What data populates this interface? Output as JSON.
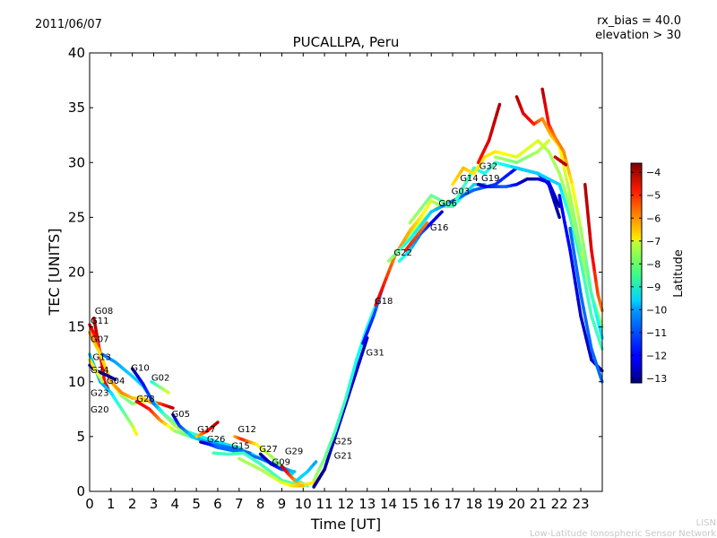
{
  "header": {
    "date": "2011/06/07",
    "rx_bias": "rx_bias = 40.0",
    "elevation": "elevation > 30"
  },
  "watermark": {
    "line1": "LISN",
    "line2": "Low-Latitude Ionospheric Sensor Network"
  },
  "chart_data": {
    "type": "scatter",
    "title": "PUCALLPA, Peru",
    "xlabel": "Time [UT]",
    "ylabel": "TEC [UNITS]",
    "xlim": [
      0,
      24
    ],
    "ylim": [
      0,
      40
    ],
    "xticks": [
      0,
      1,
      2,
      3,
      4,
      5,
      6,
      7,
      8,
      9,
      10,
      11,
      12,
      13,
      14,
      15,
      16,
      17,
      18,
      19,
      20,
      21,
      22,
      23
    ],
    "yticks": [
      0,
      5,
      10,
      15,
      20,
      25,
      30,
      35,
      40
    ],
    "grid": false,
    "colorbar": {
      "label": "Latitude",
      "range": [
        -13.2,
        -3.6
      ],
      "ticks": [
        -4,
        -5,
        -6,
        -7,
        -8,
        -9,
        -10,
        -11,
        -12,
        -13
      ],
      "colormap": "jet"
    },
    "satellite_labels": [
      {
        "name": "G08",
        "t": 0.2,
        "tec": 16.2
      },
      {
        "name": "G11",
        "t": 0.0,
        "tec": 15.3
      },
      {
        "name": "G07",
        "t": 0.0,
        "tec": 14.5
      },
      {
        "name": "G13",
        "t": 0.1,
        "tec": 13.8
      },
      {
        "name": "G24",
        "t": 0.0,
        "tec": 12.6
      },
      {
        "name": "G04",
        "t": 0.75,
        "tec": 12.5
      },
      {
        "name": "G23",
        "t": 0.0,
        "tec": 11.4
      },
      {
        "name": "G20",
        "t": 0.0,
        "tec": 10.8
      },
      {
        "name": "G10",
        "t": 1.9,
        "tec": 11.0
      },
      {
        "name": "G02",
        "t": 2.85,
        "tec": 10.1
      },
      {
        "name": "G28",
        "t": 2.15,
        "tec": 8.2
      },
      {
        "name": "G05",
        "t": 3.8,
        "tec": 6.8
      },
      {
        "name": "G17",
        "t": 5.0,
        "tec": 5.4
      },
      {
        "name": "G26",
        "t": 5.45,
        "tec": 4.5
      },
      {
        "name": "G12",
        "t": 6.9,
        "tec": 5.4
      },
      {
        "name": "G15",
        "t": 6.6,
        "tec": 3.9
      },
      {
        "name": "G27",
        "t": 7.9,
        "tec": 3.6
      },
      {
        "name": "G09",
        "t": 8.5,
        "tec": 2.4
      },
      {
        "name": "G29",
        "t": 9.1,
        "tec": 2.5
      },
      {
        "name": "G25",
        "t": 11.4,
        "tec": 4.3
      },
      {
        "name": "G21",
        "t": 11.4,
        "tec": 3.9
      },
      {
        "name": "G31",
        "t": 12.9,
        "tec": 12.4
      },
      {
        "name": "G18",
        "t": 13.3,
        "tec": 17.1
      },
      {
        "name": "G22",
        "t": 14.2,
        "tec": 21.5
      },
      {
        "name": "G16",
        "t": 15.9,
        "tec": 23.8
      },
      {
        "name": "G06",
        "t": 16.3,
        "tec": 26.0
      },
      {
        "name": "G03",
        "t": 16.9,
        "tec": 26.2
      },
      {
        "name": "G14",
        "t": 17.3,
        "tec": 28.3
      },
      {
        "name": "G19",
        "t": 18.3,
        "tec": 28.3
      },
      {
        "name": "G32",
        "t": 18.2,
        "tec": 29.4
      }
    ],
    "tracks": [
      [
        [
          0.2,
          15.8,
          -4
        ],
        [
          0.5,
          12.5,
          -4.5
        ],
        [
          0.7,
          10,
          -5
        ],
        [
          0.9,
          9.2,
          -4
        ]
      ],
      [
        [
          0,
          15.2,
          -4.5
        ],
        [
          0.3,
          14,
          -5
        ],
        [
          0.6,
          12,
          -6
        ],
        [
          1,
          10,
          -7
        ],
        [
          1.5,
          8.7,
          -8
        ],
        [
          2,
          8,
          -8.5
        ],
        [
          2.7,
          8.3,
          -7
        ],
        [
          3.3,
          8,
          -5.5
        ],
        [
          3.9,
          7.6,
          -4
        ]
      ],
      [
        [
          0,
          14.5,
          -6
        ],
        [
          0.5,
          12.5,
          -7
        ],
        [
          1,
          10,
          -6.5
        ],
        [
          1.5,
          9,
          -6
        ],
        [
          2,
          8.5,
          -6.5
        ],
        [
          2.5,
          8.5,
          -7
        ],
        [
          3,
          8,
          -6
        ],
        [
          3.5,
          7,
          -5.5
        ],
        [
          4,
          6,
          -6
        ],
        [
          5,
          5,
          -7
        ],
        [
          6,
          4.5,
          -8
        ],
        [
          7,
          4,
          -9
        ]
      ],
      [
        [
          0,
          12.5,
          -10
        ],
        [
          0.5,
          10,
          -10.5
        ],
        [
          1,
          9,
          -10
        ],
        [
          1.5,
          7.5,
          -9
        ],
        [
          2,
          6,
          -8
        ],
        [
          2.2,
          5.2,
          -7
        ]
      ],
      [
        [
          0,
          11.5,
          -12
        ],
        [
          0.3,
          11,
          -12.5
        ],
        [
          0.8,
          10.6,
          -13
        ],
        [
          1.2,
          10.2,
          -12.8
        ]
      ],
      [
        [
          0,
          12,
          -7
        ],
        [
          0.3,
          11,
          -7
        ],
        [
          0.6,
          10,
          -8
        ]
      ],
      [
        [
          0.6,
          12.5,
          -11
        ],
        [
          1.2,
          11.8,
          -10.5
        ],
        [
          2,
          10.5,
          -10
        ],
        [
          2.5,
          9.6,
          -10
        ],
        [
          3,
          8.2,
          -9
        ],
        [
          3.5,
          7,
          -9
        ],
        [
          4.5,
          5.5,
          -9
        ],
        [
          5.5,
          4.8,
          -9.5
        ],
        [
          6.5,
          4.2,
          -10
        ],
        [
          7.5,
          3.5,
          -10
        ],
        [
          8.5,
          2.5,
          -9
        ],
        [
          9.5,
          1.6,
          -10
        ]
      ],
      [
        [
          2,
          11.2,
          -13
        ],
        [
          2.5,
          9.8,
          -12
        ],
        [
          3,
          8,
          -11
        ],
        [
          3.5,
          7,
          -9
        ],
        [
          4,
          6,
          -8
        ],
        [
          4.5,
          5.3,
          -8
        ]
      ],
      [
        [
          2.9,
          10,
          -9.5
        ],
        [
          3.3,
          9.5,
          -8.5
        ],
        [
          3.7,
          9,
          -7.5
        ]
      ],
      [
        [
          2.2,
          8.2,
          -4.5
        ],
        [
          2.8,
          7.5,
          -5
        ],
        [
          3.3,
          6.5,
          -6
        ],
        [
          4,
          5.5,
          -8
        ],
        [
          5,
          4.8,
          -9
        ],
        [
          6,
          4.3,
          -10
        ]
      ],
      [
        [
          3.9,
          7,
          -12.5
        ],
        [
          4.2,
          6,
          -11.5
        ],
        [
          4.8,
          5,
          -10
        ],
        [
          5.5,
          4.5,
          -10.5
        ],
        [
          6.5,
          4,
          -11
        ],
        [
          7.5,
          3.5,
          -11
        ]
      ],
      [
        [
          5,
          5,
          -7
        ],
        [
          5.5,
          5.5,
          -5
        ],
        [
          6,
          6.3,
          -4
        ]
      ],
      [
        [
          5.2,
          4.5,
          -13
        ],
        [
          5.6,
          4.3,
          -12
        ],
        [
          6,
          4,
          -11
        ],
        [
          7,
          3.6,
          -11
        ],
        [
          8,
          3,
          -11
        ],
        [
          9,
          2.2,
          -11
        ],
        [
          9.5,
          1.8,
          -10
        ]
      ],
      [
        [
          6.8,
          5,
          -6.5
        ],
        [
          7.2,
          4.7,
          -5
        ],
        [
          7.8,
          4.3,
          -7
        ],
        [
          8.5,
          3.2,
          -8
        ],
        [
          9.5,
          1.2,
          -9
        ],
        [
          10.2,
          0.5,
          -9
        ]
      ],
      [
        [
          5.8,
          3.5,
          -9
        ],
        [
          6.5,
          3.4,
          -9
        ],
        [
          7.2,
          3.5,
          -9
        ],
        [
          8,
          2.5,
          -9
        ],
        [
          9,
          1,
          -9
        ],
        [
          10,
          0.5,
          -8.5
        ]
      ],
      [
        [
          8,
          3.4,
          -13
        ],
        [
          8.5,
          2.5,
          -12.5
        ],
        [
          9,
          2,
          -11.5
        ],
        [
          9.6,
          1.8,
          -10
        ]
      ],
      [
        [
          9,
          2.3,
          -4
        ],
        [
          9.3,
          1.6,
          -5
        ],
        [
          9.6,
          1,
          -6
        ],
        [
          10,
          0.6,
          -7
        ],
        [
          10.5,
          0.8,
          -7
        ]
      ],
      [
        [
          7,
          3,
          -8
        ],
        [
          8,
          2,
          -8
        ],
        [
          9,
          0.8,
          -7.5
        ],
        [
          9.5,
          0.5,
          -7
        ],
        [
          10,
          0.5,
          -6.5
        ]
      ],
      [
        [
          9.7,
          1,
          -10
        ],
        [
          10.2,
          1.8,
          -10
        ],
        [
          10.6,
          2.7,
          -10.5
        ]
      ],
      [
        [
          10.5,
          0.5,
          -6
        ],
        [
          11,
          2,
          -6
        ],
        [
          11.5,
          5,
          -6
        ],
        [
          12,
          8,
          -5.5
        ],
        [
          12.3,
          10,
          -5
        ],
        [
          12.5,
          12,
          -4.5
        ]
      ],
      [
        [
          10.5,
          0.4,
          -13
        ],
        [
          11,
          2,
          -13
        ],
        [
          11.5,
          5,
          -12.5
        ],
        [
          12,
          8,
          -12.5
        ],
        [
          12.5,
          11,
          -12.5
        ],
        [
          13,
          14,
          -12.8
        ]
      ],
      [
        [
          10.5,
          1,
          -8
        ],
        [
          11,
          3,
          -8.5
        ],
        [
          11.5,
          5.5,
          -9
        ],
        [
          12,
          8.5,
          -9
        ],
        [
          12.5,
          12,
          -9.5
        ],
        [
          13,
          15,
          -9.5
        ],
        [
          13.6,
          18,
          -9
        ]
      ],
      [
        [
          12.8,
          13.5,
          -12
        ],
        [
          13.3,
          16,
          -11.5
        ],
        [
          13.8,
          19,
          -10
        ],
        [
          14.3,
          21.5,
          -9
        ],
        [
          15,
          23.5,
          -8
        ],
        [
          16,
          25.5,
          -7
        ],
        [
          16.8,
          26.5,
          -8
        ]
      ],
      [
        [
          13.4,
          17,
          -4.5
        ],
        [
          13.8,
          19,
          -5
        ],
        [
          14.3,
          21.5,
          -6
        ],
        [
          15,
          23.8,
          -6.5
        ],
        [
          15.5,
          25,
          -7
        ],
        [
          16,
          26.5,
          -7.5
        ],
        [
          16.5,
          26,
          -8.5
        ],
        [
          17,
          26,
          -9
        ],
        [
          17.5,
          27,
          -9.5
        ],
        [
          18,
          28,
          -10
        ],
        [
          18.5,
          28,
          -10
        ]
      ],
      [
        [
          14.5,
          21,
          -9
        ],
        [
          15,
          22,
          -10
        ],
        [
          15.5,
          23.5,
          -11
        ],
        [
          16,
          24.5,
          -12
        ],
        [
          16.5,
          25.5,
          -12.5
        ]
      ],
      [
        [
          14.8,
          22,
          -5
        ],
        [
          15.4,
          23.5,
          -5.5
        ],
        [
          15.8,
          24.5,
          -6
        ]
      ],
      [
        [
          14,
          21,
          -8
        ],
        [
          15,
          23,
          -9.5
        ],
        [
          16,
          25.5,
          -10
        ],
        [
          17,
          26.5,
          -11
        ],
        [
          18,
          27.5,
          -11
        ],
        [
          19,
          28,
          -11.5
        ],
        [
          20,
          29.5,
          -12
        ],
        [
          21,
          29,
          -11.5
        ],
        [
          21.5,
          28,
          -12
        ],
        [
          22,
          25,
          -13
        ]
      ],
      [
        [
          15,
          24.5,
          -8
        ],
        [
          16,
          27,
          -8.5
        ],
        [
          17,
          26,
          -9
        ],
        [
          18,
          29.5,
          -9
        ],
        [
          18.5,
          29,
          -9.5
        ],
        [
          19,
          30,
          -9
        ],
        [
          20,
          29.5,
          -10
        ],
        [
          21,
          29,
          -10
        ],
        [
          22,
          28,
          -10
        ],
        [
          22.5,
          25,
          -9
        ],
        [
          23,
          21,
          -9
        ],
        [
          23.5,
          16,
          -9
        ],
        [
          24,
          13,
          -9
        ]
      ],
      [
        [
          17,
          28,
          -7
        ],
        [
          17.5,
          29.5,
          -6.5
        ],
        [
          18,
          29,
          -7
        ],
        [
          18.5,
          30.5,
          -7
        ],
        [
          19,
          31,
          -7
        ],
        [
          20,
          30.5,
          -7.5
        ],
        [
          21,
          32,
          -7.5
        ],
        [
          21.5,
          31,
          -8
        ],
        [
          22,
          29,
          -8
        ],
        [
          22.5,
          26,
          -8
        ],
        [
          23,
          22,
          -8
        ],
        [
          23.5,
          18,
          -8
        ],
        [
          24,
          15,
          -8
        ]
      ],
      [
        [
          18.2,
          28,
          -13
        ],
        [
          18.6,
          27.8,
          -12
        ],
        [
          19.5,
          27.8,
          -11
        ],
        [
          20,
          28,
          -12
        ],
        [
          20.5,
          28.5,
          -13
        ],
        [
          21,
          28.5,
          -12.5
        ],
        [
          21.5,
          28.2,
          -12
        ],
        [
          22,
          26,
          -13
        ]
      ],
      [
        [
          18.2,
          30,
          -5
        ],
        [
          18.7,
          32,
          -4.5
        ],
        [
          19.2,
          35.3,
          -4
        ]
      ],
      [
        [
          20,
          36,
          -4
        ],
        [
          20.3,
          34.5,
          -4.5
        ],
        [
          20.8,
          33.5,
          -5
        ],
        [
          21.2,
          34,
          -6
        ],
        [
          21.6,
          32.5,
          -6.5
        ],
        [
          22,
          31.5,
          -7
        ],
        [
          22.5,
          27,
          -8
        ],
        [
          23,
          22,
          -8.5
        ]
      ],
      [
        [
          21.2,
          36.7,
          -4
        ],
        [
          21.5,
          33.5,
          -5
        ],
        [
          21.8,
          32.3,
          -6
        ],
        [
          22.2,
          31,
          -6
        ],
        [
          22.6,
          28,
          -7
        ],
        [
          23,
          24,
          -8
        ],
        [
          23.5,
          18,
          -9
        ],
        [
          24,
          14,
          -10
        ]
      ],
      [
        [
          21.8,
          30.5,
          -4.5
        ],
        [
          22.3,
          29.8,
          -4
        ]
      ],
      [
        [
          23.2,
          28,
          -4
        ],
        [
          23.5,
          22,
          -4.5
        ],
        [
          23.8,
          18,
          -5.5
        ],
        [
          24,
          16.5,
          -6
        ]
      ],
      [
        [
          22,
          27,
          -12
        ],
        [
          22.5,
          22,
          -12
        ],
        [
          23,
          16,
          -12.5
        ],
        [
          23.5,
          12,
          -12.5
        ],
        [
          24,
          11,
          -13
        ]
      ],
      [
        [
          22.5,
          24,
          -11
        ],
        [
          23,
          18,
          -11
        ],
        [
          23.5,
          13,
          -11
        ],
        [
          24,
          10,
          -11
        ]
      ],
      [
        [
          19,
          30.5,
          -8
        ],
        [
          20,
          30,
          -8.5
        ],
        [
          21,
          31,
          -8
        ],
        [
          21.5,
          32,
          -7.5
        ]
      ]
    ]
  }
}
